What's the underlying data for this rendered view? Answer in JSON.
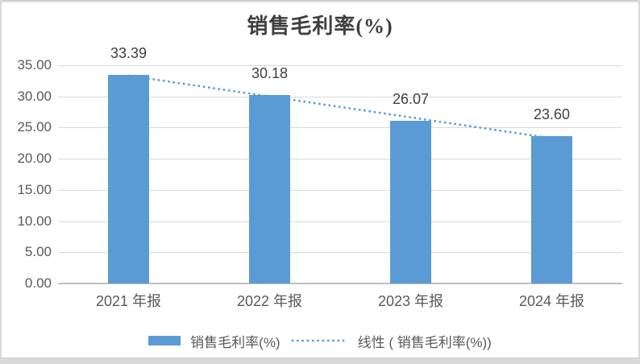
{
  "chart_data": {
    "type": "bar",
    "title": "销售毛利率(%)",
    "categories": [
      "2021 年报",
      "2022 年报",
      "2023 年报",
      "2024 年报"
    ],
    "series": [
      {
        "name": "销售毛利率(%)",
        "values": [
          33.39,
          30.18,
          26.07,
          23.6
        ]
      }
    ],
    "values": [
      33.39,
      30.18,
      26.07,
      23.6
    ],
    "data_labels": [
      "33.39",
      "30.18",
      "26.07",
      "23.60"
    ],
    "ytick_labels": [
      "35.00",
      "30.00",
      "25.00",
      "20.00",
      "15.00",
      "10.00",
      "5.00",
      "0.00"
    ],
    "ylim": [
      0,
      35
    ],
    "grid": true,
    "legend_position": "bottom",
    "trendline": {
      "type": "linear",
      "label": "线性 ( 销售毛利率(%))"
    },
    "legend": {
      "bar_label": "销售毛利率(%)",
      "trend_label": "线性 ( 销售毛利率(%))"
    },
    "colors": {
      "bar": "#5B9BD5",
      "trendline": "#5B9BD5",
      "gridline": "#D9D9D9",
      "axis_line": "#BFBFBF",
      "tick_text": "#595959",
      "title_text": "#3F3F3F",
      "data_label_text": "#404040",
      "border": "#D9D9D9"
    }
  }
}
